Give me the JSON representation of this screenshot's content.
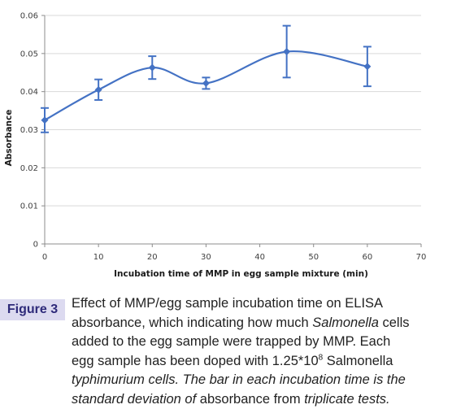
{
  "chart_data": {
    "type": "line",
    "title": "",
    "xlabel": "Incubation time of MMP in egg sample mixture (min)",
    "ylabel": "Absorbance",
    "xlim": [
      0,
      70
    ],
    "ylim": [
      0,
      0.06
    ],
    "x_ticks": [
      "0",
      "10",
      "20",
      "30",
      "40",
      "50",
      "60",
      "70"
    ],
    "y_ticks": [
      "0",
      "0.01",
      "0.02",
      "0.03",
      "0.04",
      "0.05",
      "0.06"
    ],
    "grid": "horizontal",
    "legend": "none",
    "smooth": true,
    "series": [
      {
        "color": "#4472c4",
        "points": [
          {
            "x": 0,
            "y": 0.0325,
            "err": 0.0032
          },
          {
            "x": 10,
            "y": 0.0405,
            "err": 0.0027
          },
          {
            "x": 20,
            "y": 0.0463,
            "err": 0.003
          },
          {
            "x": 30,
            "y": 0.0422,
            "err": 0.0015
          },
          {
            "x": 45,
            "y": 0.0505,
            "err": 0.0068
          },
          {
            "x": 60,
            "y": 0.0466,
            "err": 0.0052
          }
        ]
      }
    ]
  },
  "caption": {
    "label": "Figure 3",
    "line1": "Effect of MMP/egg sample incubation time on ELISA",
    "line2a": "absorbance, which indicating how much ",
    "line2b": "Salmonella",
    "line2c": " cells",
    "line3": "added to the egg sample were trapped by MMP. Each",
    "line4a": "egg sample has been doped with 1.25*10",
    "line4sup": "8",
    "line4b": " Salmonella",
    "line5": "typhimurium cells. The bar in each incubation time is the",
    "line6a": "standard deviation of",
    "line6b": " absorbance from ",
    "line6c": "triplicate tests."
  }
}
